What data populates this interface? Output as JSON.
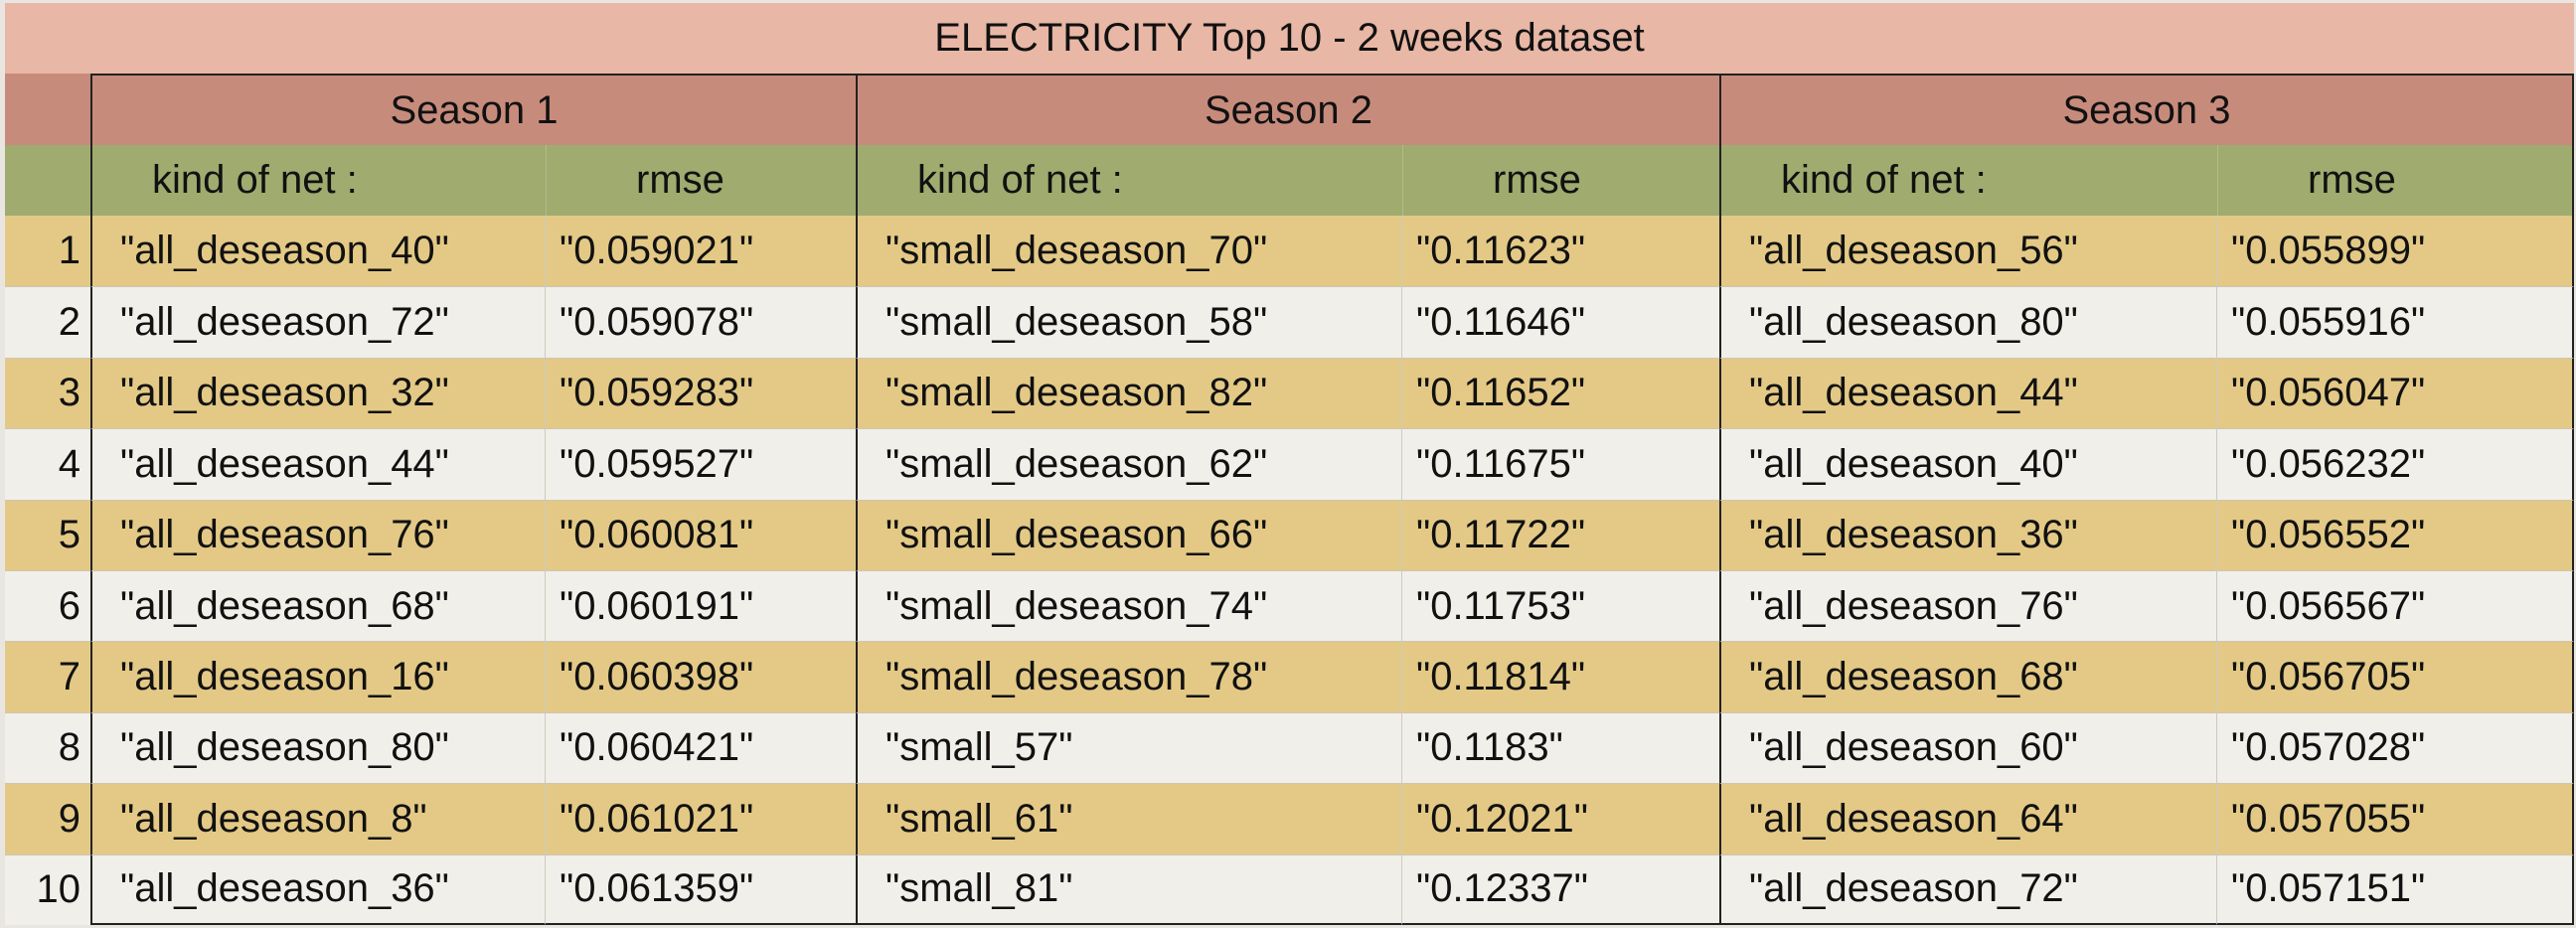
{
  "title": "ELECTRICITY Top 10 - 2 weeks dataset",
  "seasons": [
    "Season 1",
    "Season 2",
    "Season 3"
  ],
  "headers": {
    "kind": "kind of net :",
    "rmse": "rmse"
  },
  "colors": {
    "title_bg": "#e8b7a5",
    "season_bg": "#c78b7c",
    "header_bg": "#9fab6f",
    "row_odd_bg": "#e3c985",
    "row_even_bg": "#f1efe9"
  },
  "rows": [
    {
      "idx": "1",
      "s1_net": "\"all_deseason_40\"",
      "s1_rmse": "\"0.059021\"",
      "s2_net": "\"small_deseason_70\"",
      "s2_rmse": "\"0.11623\"",
      "s3_net": "\"all_deseason_56\"",
      "s3_rmse": "\"0.055899\""
    },
    {
      "idx": "2",
      "s1_net": "\"all_deseason_72\"",
      "s1_rmse": "\"0.059078\"",
      "s2_net": "\"small_deseason_58\"",
      "s2_rmse": "\"0.11646\"",
      "s3_net": "\"all_deseason_80\"",
      "s3_rmse": "\"0.055916\""
    },
    {
      "idx": "3",
      "s1_net": "\"all_deseason_32\"",
      "s1_rmse": "\"0.059283\"",
      "s2_net": "\"small_deseason_82\"",
      "s2_rmse": "\"0.11652\"",
      "s3_net": "\"all_deseason_44\"",
      "s3_rmse": "\"0.056047\""
    },
    {
      "idx": "4",
      "s1_net": "\"all_deseason_44\"",
      "s1_rmse": "\"0.059527\"",
      "s2_net": "\"small_deseason_62\"",
      "s2_rmse": "\"0.11675\"",
      "s3_net": "\"all_deseason_40\"",
      "s3_rmse": "\"0.056232\""
    },
    {
      "idx": "5",
      "s1_net": "\"all_deseason_76\"",
      "s1_rmse": "\"0.060081\"",
      "s2_net": "\"small_deseason_66\"",
      "s2_rmse": "\"0.11722\"",
      "s3_net": "\"all_deseason_36\"",
      "s3_rmse": "\"0.056552\""
    },
    {
      "idx": "6",
      "s1_net": "\"all_deseason_68\"",
      "s1_rmse": "\"0.060191\"",
      "s2_net": "\"small_deseason_74\"",
      "s2_rmse": "\"0.11753\"",
      "s3_net": "\"all_deseason_76\"",
      "s3_rmse": "\"0.056567\""
    },
    {
      "idx": "7",
      "s1_net": "\"all_deseason_16\"",
      "s1_rmse": "\"0.060398\"",
      "s2_net": "\"small_deseason_78\"",
      "s2_rmse": "\"0.11814\"",
      "s3_net": "\"all_deseason_68\"",
      "s3_rmse": "\"0.056705\""
    },
    {
      "idx": "8",
      "s1_net": "\"all_deseason_80\"",
      "s1_rmse": "\"0.060421\"",
      "s2_net": "\"small_57\"",
      "s2_rmse": "\"0.1183\"",
      "s3_net": "\"all_deseason_60\"",
      "s3_rmse": "\"0.057028\""
    },
    {
      "idx": "9",
      "s1_net": "\"all_deseason_8\"",
      "s1_rmse": "\"0.061021\"",
      "s2_net": "\"small_61\"",
      "s2_rmse": "\"0.12021\"",
      "s3_net": "\"all_deseason_64\"",
      "s3_rmse": "\"0.057055\""
    },
    {
      "idx": "10",
      "s1_net": "\"all_deseason_36\"",
      "s1_rmse": "\"0.061359\"",
      "s2_net": "\"small_81\"",
      "s2_rmse": "\"0.12337\"",
      "s3_net": "\"all_deseason_72\"",
      "s3_rmse": "\"0.057151\""
    }
  ]
}
